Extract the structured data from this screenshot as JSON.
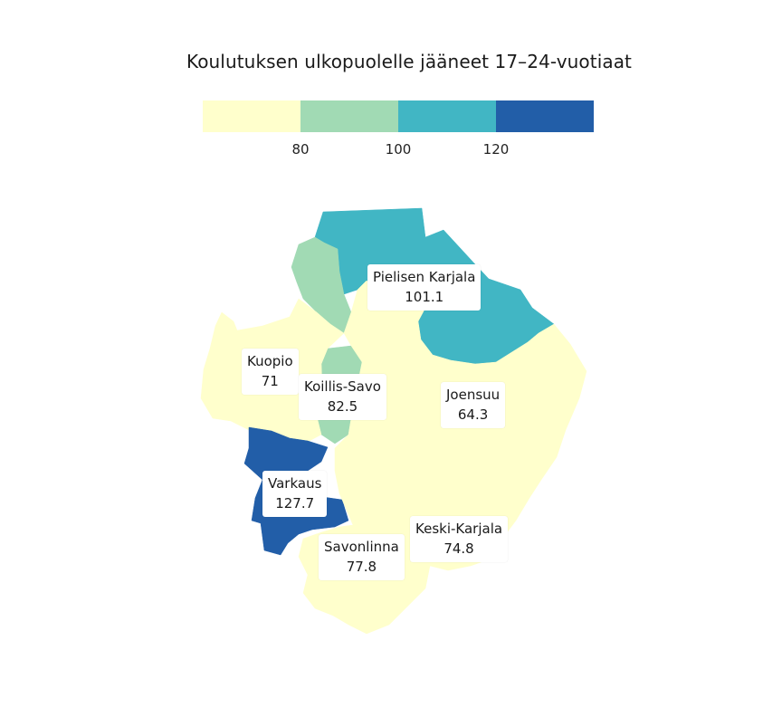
{
  "title": "Koulutuksen ulkopuolelle jääneet 17–24-vuotiaat",
  "legend": {
    "colors": [
      "#ffffcc",
      "#a1dab4",
      "#41b6c4",
      "#225ea8"
    ],
    "ticks": [
      "80",
      "100",
      "120"
    ]
  },
  "regions": [
    {
      "name": "Pielisen Karjala",
      "value": "101.1",
      "color": "#41b6c4"
    },
    {
      "name": "Kuopio",
      "value": "71",
      "color": "#ffffcc"
    },
    {
      "name": "Koillis-Savo",
      "value": "82.5",
      "color": "#a1dab4"
    },
    {
      "name": "Joensuu",
      "value": "64.3",
      "color": "#ffffcc"
    },
    {
      "name": "Varkaus",
      "value": "127.7",
      "color": "#225ea8"
    },
    {
      "name": "Keski-Karjala",
      "value": "74.8",
      "color": "#ffffcc"
    },
    {
      "name": "Savonlinna",
      "value": "77.8",
      "color": "#ffffcc"
    }
  ]
}
